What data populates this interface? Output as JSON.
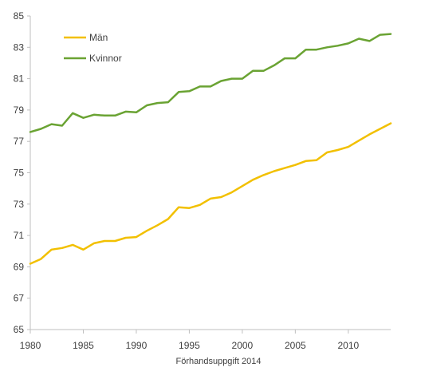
{
  "chart_data": {
    "type": "line",
    "title": "",
    "xlabel": "",
    "ylabel": "",
    "note": "Förhandsuppgift 2014",
    "xlim": [
      1980,
      2014
    ],
    "ylim": [
      65,
      85
    ],
    "x_ticks": [
      1980,
      1985,
      1990,
      1995,
      2000,
      2005,
      2010
    ],
    "y_ticks": [
      65,
      67,
      69,
      71,
      73,
      75,
      77,
      79,
      81,
      83,
      85
    ],
    "grid": false,
    "legend_position": "top-left",
    "x": [
      1980,
      1981,
      1982,
      1983,
      1984,
      1985,
      1986,
      1987,
      1988,
      1989,
      1990,
      1991,
      1992,
      1993,
      1994,
      1995,
      1996,
      1997,
      1998,
      1999,
      2000,
      2001,
      2002,
      2003,
      2004,
      2005,
      2006,
      2007,
      2008,
      2009,
      2010,
      2011,
      2012,
      2013,
      2014
    ],
    "series": [
      {
        "name": "Män",
        "color": "#f2c000",
        "values": [
          69.2,
          69.5,
          70.1,
          70.2,
          70.4,
          70.1,
          70.5,
          70.65,
          70.65,
          70.85,
          70.9,
          71.3,
          71.65,
          72.05,
          72.8,
          72.75,
          72.95,
          73.35,
          73.45,
          73.75,
          74.15,
          74.55,
          74.85,
          75.1,
          75.3,
          75.5,
          75.75,
          75.8,
          76.3,
          76.45,
          76.65,
          77.05,
          77.45,
          77.8,
          78.15
        ]
      },
      {
        "name": "Kvinnor",
        "color": "#6aa333",
        "values": [
          77.6,
          77.8,
          78.1,
          78.0,
          78.8,
          78.5,
          78.7,
          78.65,
          78.65,
          78.9,
          78.85,
          79.3,
          79.45,
          79.5,
          80.15,
          80.2,
          80.5,
          80.5,
          80.85,
          81.0,
          81.0,
          81.5,
          81.5,
          81.85,
          82.3,
          82.3,
          82.85,
          82.85,
          83.0,
          83.1,
          83.25,
          83.55,
          83.4,
          83.8,
          83.85
        ]
      }
    ]
  }
}
